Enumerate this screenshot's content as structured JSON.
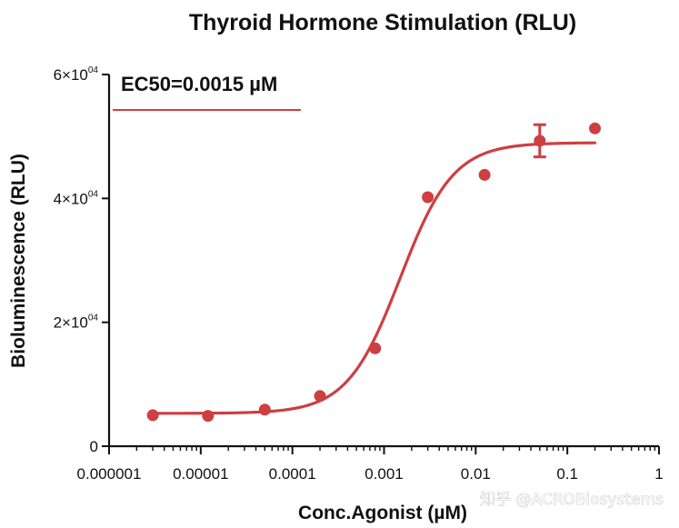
{
  "chart_data": {
    "type": "scatter",
    "title": "Thyroid Hormone Stimulation (RLU)",
    "xlabel": "Conc.Agonist (µM)",
    "ylabel": "Bioluminescence (RLU)",
    "x_scale": "log10",
    "xlim": [
      1e-06,
      1
    ],
    "ylim": [
      0,
      60000
    ],
    "x_ticks": [
      {
        "value": 1e-06,
        "label": "0.000001"
      },
      {
        "value": 1e-05,
        "label": "0.00001"
      },
      {
        "value": 0.0001,
        "label": "0.0001"
      },
      {
        "value": 0.001,
        "label": "0.001"
      },
      {
        "value": 0.01,
        "label": "0.01"
      },
      {
        "value": 0.1,
        "label": "0.1"
      },
      {
        "value": 1,
        "label": "1"
      }
    ],
    "y_ticks": [
      {
        "value": 0,
        "label": "0"
      },
      {
        "value": 20000,
        "base": "2×10",
        "exp": "04"
      },
      {
        "value": 40000,
        "base": "4×10",
        "exp": "04"
      },
      {
        "value": 60000,
        "base": "6×10",
        "exp": "04"
      }
    ],
    "series": [
      {
        "name": "EC50=0.0015 µM",
        "color": "#cd3f41",
        "points": [
          {
            "x": 3e-06,
            "y": 5000
          },
          {
            "x": 1.2e-05,
            "y": 4900
          },
          {
            "x": 5e-05,
            "y": 5900
          },
          {
            "x": 0.0002,
            "y": 8100
          },
          {
            "x": 0.0008,
            "y": 15800
          },
          {
            "x": 0.003,
            "y": 40200
          },
          {
            "x": 0.0125,
            "y": 43800
          },
          {
            "x": 0.05,
            "y": 49300,
            "error": 2600
          },
          {
            "x": 0.2,
            "y": 51300
          }
        ],
        "fit": {
          "model": "4PL",
          "bottom": 5300,
          "top": 49000,
          "ec50": 0.0015,
          "hill": 1.5,
          "x_range": [
            3e-06,
            0.2
          ]
        }
      }
    ],
    "legend": {
      "label": "EC50=0.0015 µM",
      "position": "top-left"
    }
  },
  "watermark": "知乎 @ACROBiosystems"
}
